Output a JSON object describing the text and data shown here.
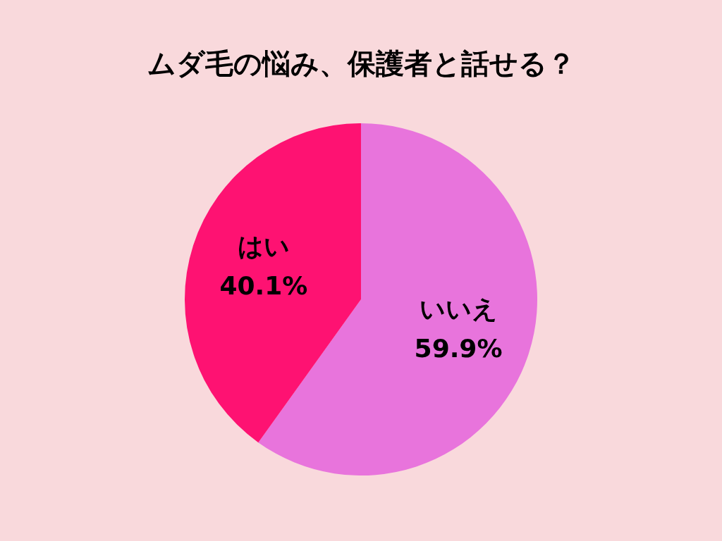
{
  "chart_data": {
    "type": "pie",
    "title": "ムダ毛の悩み、保護者と話せる？",
    "categories": [
      "いいえ",
      "はい"
    ],
    "values": [
      59.9,
      40.1
    ],
    "colors": [
      "#e874dc",
      "#fe1272"
    ],
    "value_labels": [
      "59.9%",
      "40.1%"
    ],
    "legend": false
  }
}
